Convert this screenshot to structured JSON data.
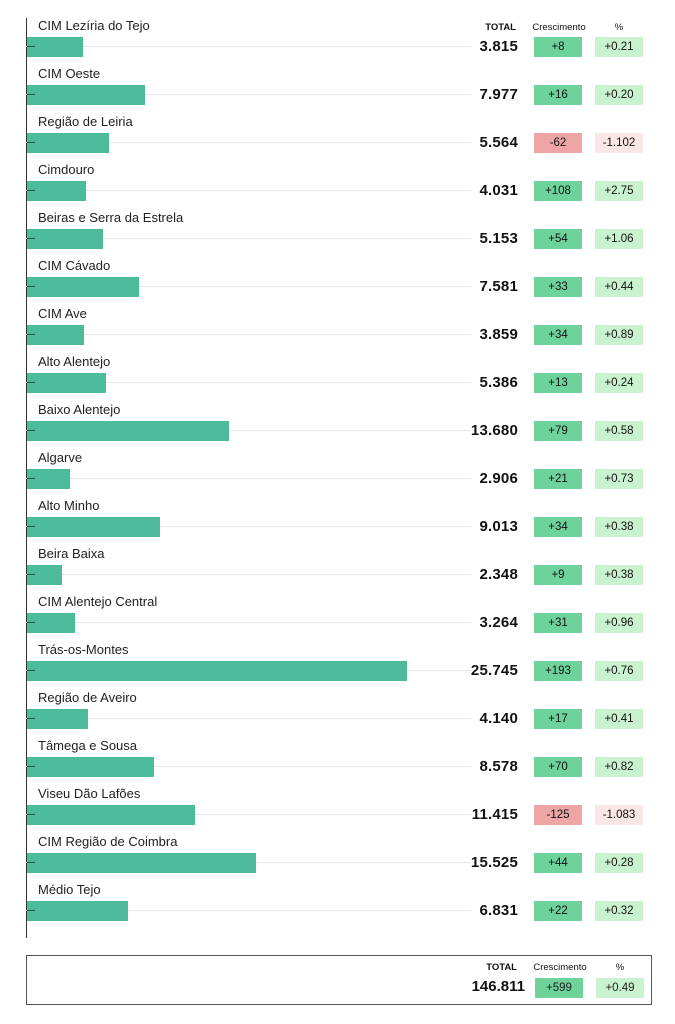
{
  "chart_data": {
    "type": "bar",
    "orientation": "horizontal",
    "columns": {
      "total": "TOTAL",
      "growth": "Crescimento",
      "pct": "%"
    },
    "categories": [
      "CIM Lezíria do Tejo",
      "CIM Oeste",
      "Região de Leiria",
      "Cimdouro",
      "Beiras e Serra da Estrela",
      "CIM Cávado",
      "CIM Ave",
      "Alto Alentejo",
      "Baixo Alentejo",
      "Algarve",
      "Alto Minho",
      "Beira Baixa",
      "CIM Alentejo Central",
      "Trás-os-Montes",
      "Região de Aveiro",
      "Tâmega e Sousa",
      "Viseu Dão Lafões",
      "CIM Região de Coimbra",
      "Médio Tejo"
    ],
    "values": [
      3815,
      7977,
      5564,
      4031,
      5153,
      7581,
      3859,
      5386,
      13680,
      2906,
      9013,
      2348,
      3264,
      25745,
      4140,
      8578,
      11415,
      15525,
      6831
    ],
    "value_labels": [
      "3.815",
      "7.977",
      "5.564",
      "4.031",
      "5.153",
      "7.581",
      "3.859",
      "5.386",
      "13.680",
      "2.906",
      "9.013",
      "2.348",
      "3.264",
      "25.745",
      "4.140",
      "8.578",
      "11.415",
      "15.525",
      "6.831"
    ],
    "growth": [
      "+8",
      "+16",
      "-62",
      "+108",
      "+54",
      "+33",
      "+34",
      "+13",
      "+79",
      "+21",
      "+34",
      "+9",
      "+31",
      "+193",
      "+17",
      "+70",
      "-125",
      "+44",
      "+22"
    ],
    "pct": [
      "+0.21",
      "+0.20",
      "-1.102",
      "+2.75",
      "+1.06",
      "+0.44",
      "+0.89",
      "+0.24",
      "+0.58",
      "+0.73",
      "+0.38",
      "+0.38",
      "+0.96",
      "+0.76",
      "+0.41",
      "+0.82",
      "-1.083",
      "+0.28",
      "+0.32"
    ],
    "xlim": [
      0,
      25745
    ],
    "bar_color": "#4cbb9a",
    "positive_growth_color": "#6ed39a",
    "positive_pct_color": "#c9f2cf",
    "negative_growth_color": "#eda5a5",
    "negative_pct_color": "#fbe6e6",
    "summary": {
      "total_header": "TOTAL",
      "growth_header": "Crescimento",
      "pct_header": "%",
      "total": "146.811",
      "growth": "+599",
      "pct": "+0.49"
    }
  }
}
